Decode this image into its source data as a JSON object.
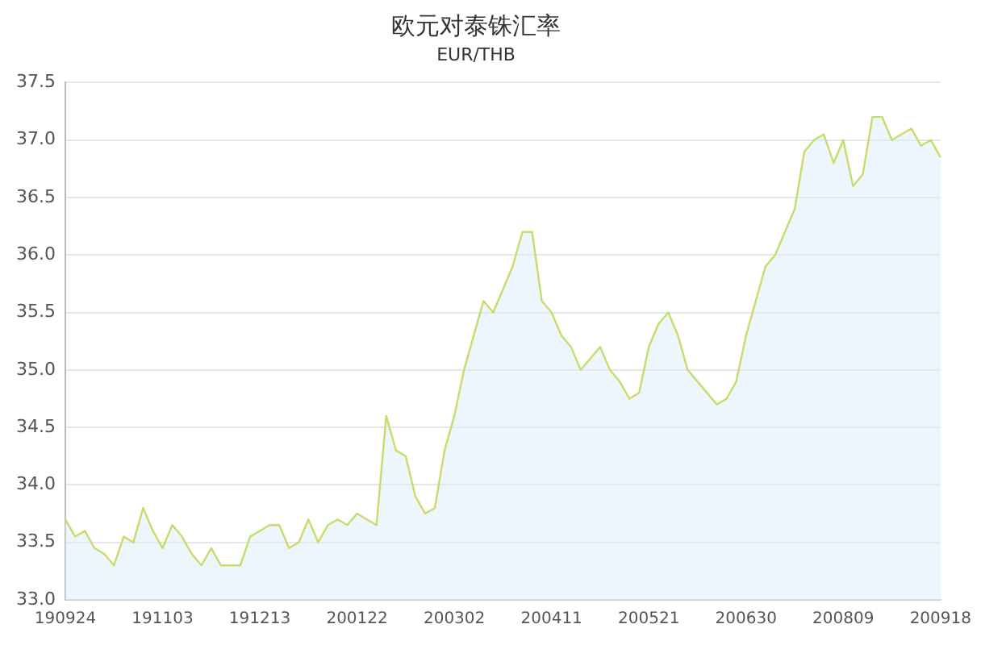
{
  "chart_data": {
    "type": "area",
    "title": "欧元对泰铢汇率",
    "subtitle": "EUR/THB",
    "categories": [
      "190924",
      null,
      null,
      null,
      null,
      null,
      null,
      null,
      null,
      null,
      "191103",
      null,
      null,
      null,
      null,
      null,
      null,
      null,
      null,
      null,
      "191213",
      null,
      null,
      null,
      null,
      null,
      null,
      null,
      null,
      null,
      "200122",
      null,
      null,
      null,
      null,
      null,
      null,
      null,
      null,
      null,
      "200302",
      null,
      null,
      null,
      null,
      null,
      null,
      null,
      null,
      null,
      "200411",
      null,
      null,
      null,
      null,
      null,
      null,
      null,
      null,
      null,
      "200521",
      null,
      null,
      null,
      null,
      null,
      null,
      null,
      null,
      null,
      "200630",
      null,
      null,
      null,
      null,
      null,
      null,
      null,
      null,
      null,
      "200809",
      null,
      null,
      null,
      null,
      null,
      null,
      null,
      null,
      null,
      "200918"
    ],
    "series": [
      {
        "color": "#c8dc6a",
        "values": [
          33.7,
          33.55,
          33.6,
          33.45,
          33.4,
          33.3,
          33.55,
          33.5,
          33.8,
          33.6,
          33.45,
          33.65,
          33.55,
          33.4,
          33.3,
          33.45,
          33.3,
          33.3,
          33.3,
          33.55,
          33.6,
          33.65,
          33.65,
          33.45,
          33.5,
          33.7,
          33.5,
          33.65,
          33.7,
          33.65,
          33.75,
          33.7,
          33.65,
          34.6,
          34.3,
          34.25,
          33.9,
          33.75,
          33.8,
          34.3,
          34.6,
          35.0,
          35.3,
          35.6,
          35.5,
          35.7,
          35.9,
          36.2,
          36.2,
          35.6,
          35.5,
          35.3,
          35.2,
          35.0,
          35.1,
          35.2,
          35.0,
          34.9,
          34.75,
          34.8,
          35.2,
          35.4,
          35.5,
          35.3,
          35.0,
          34.9,
          34.8,
          34.7,
          34.75,
          34.9,
          35.3,
          35.6,
          35.9,
          36.0,
          36.2,
          36.4,
          36.9,
          37.0,
          37.05,
          36.8,
          37.0,
          36.6,
          36.7,
          37.2,
          37.2,
          37.0,
          37.05,
          37.1,
          36.95,
          37.0,
          36.85
        ]
      }
    ],
    "ylim": [
      33,
      37.5
    ],
    "yticks": [
      {
        "value": 33,
        "label": "33.0"
      },
      {
        "value": 33.5,
        "label": "33.5"
      },
      {
        "value": 34,
        "label": "34.0"
      },
      {
        "value": 34.5,
        "label": "34.5"
      },
      {
        "value": 35,
        "label": "35.0"
      },
      {
        "value": 35.5,
        "label": "35.5"
      },
      {
        "value": 36,
        "label": "36.0"
      },
      {
        "value": 36.5,
        "label": "36.5"
      },
      {
        "value": 37,
        "label": "37.0"
      },
      {
        "value": 37.5,
        "label": "37.5"
      }
    ],
    "grid": "y"
  }
}
